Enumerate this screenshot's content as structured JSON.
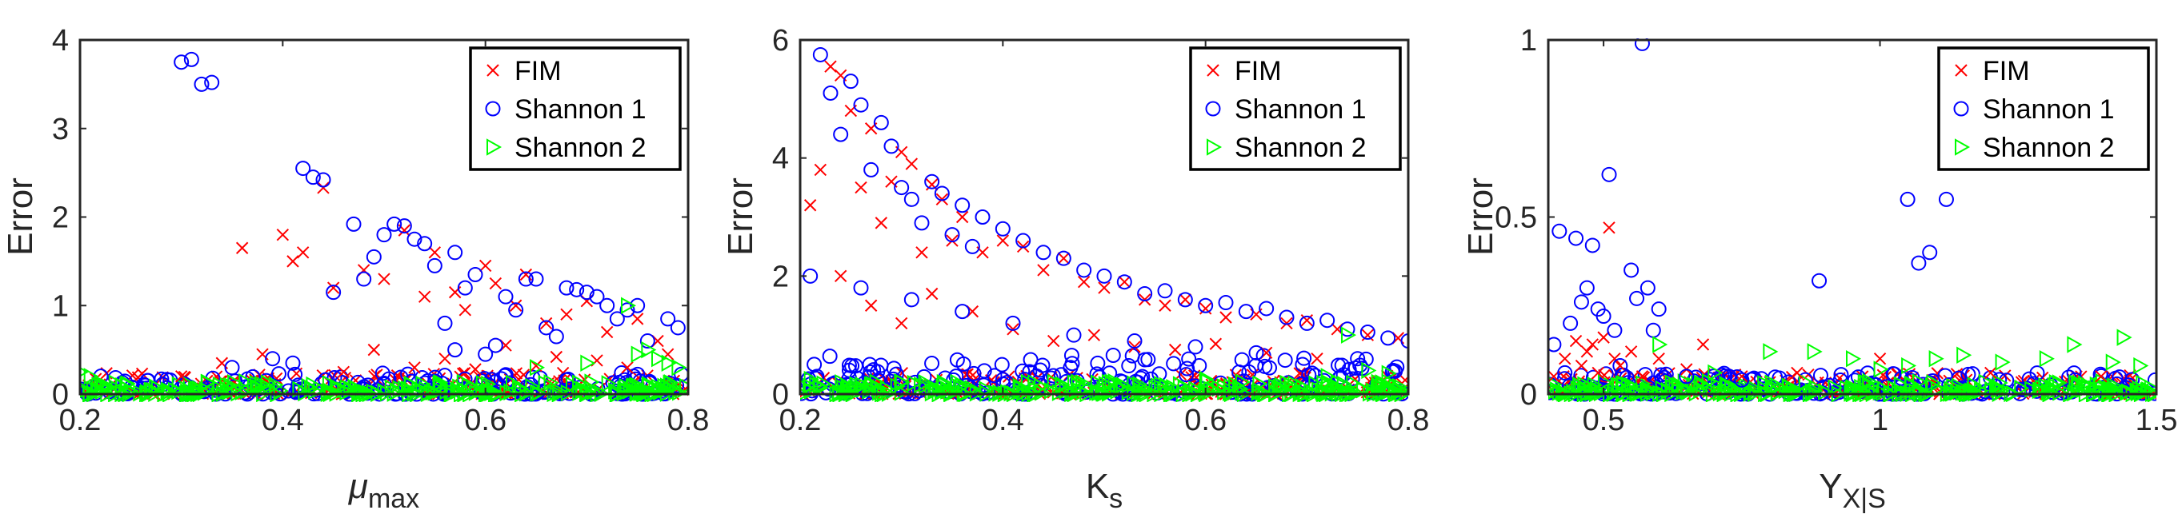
{
  "colors": {
    "fim": "#ff0000",
    "shannon1": "#0000ff",
    "shannon2": "#00ff00"
  },
  "legend": [
    "FIM",
    "Shannon 1",
    "Shannon 2"
  ],
  "chart_data": [
    {
      "type": "scatter",
      "ylabel": "Error",
      "xlabel": {
        "base": "μ",
        "sub": "max"
      },
      "xlim": [
        0.2,
        0.8
      ],
      "ylim": [
        0,
        4
      ],
      "xticks": [
        0.2,
        0.4,
        0.6,
        0.8
      ],
      "xtick_labels": [
        "0.2",
        "0.4",
        "0.6",
        "0.8"
      ],
      "yticks": [
        0,
        1,
        2,
        3,
        4
      ],
      "ytick_labels": [
        "0",
        "1",
        "2",
        "3",
        "4"
      ],
      "legend_position": "top-right",
      "series": [
        {
          "name": "FIM",
          "marker": "x",
          "x": [
            0.36,
            0.4,
            0.41,
            0.42,
            0.44,
            0.45,
            0.48,
            0.5,
            0.52,
            0.54,
            0.55,
            0.57,
            0.58,
            0.6,
            0.61,
            0.63,
            0.64,
            0.66,
            0.68,
            0.7,
            0.72,
            0.75,
            0.77,
            0.3,
            0.34,
            0.38,
            0.46,
            0.49,
            0.53,
            0.56,
            0.59,
            0.62,
            0.65,
            0.67,
            0.71,
            0.74,
            0.78
          ],
          "y": [
            1.65,
            1.8,
            1.5,
            1.6,
            2.33,
            1.2,
            1.4,
            1.3,
            1.85,
            1.1,
            1.6,
            1.15,
            0.95,
            1.45,
            1.25,
            1.0,
            1.35,
            0.8,
            0.9,
            1.05,
            0.7,
            0.85,
            0.6,
            0.2,
            0.35,
            0.45,
            0.25,
            0.5,
            0.3,
            0.4,
            0.28,
            0.55,
            0.32,
            0.42,
            0.38,
            0.3,
            0.45
          ]
        },
        {
          "name": "Shannon 1",
          "marker": "o",
          "x": [
            0.3,
            0.31,
            0.32,
            0.33,
            0.42,
            0.43,
            0.44,
            0.45,
            0.47,
            0.48,
            0.49,
            0.5,
            0.51,
            0.52,
            0.53,
            0.54,
            0.55,
            0.56,
            0.57,
            0.58,
            0.59,
            0.61,
            0.62,
            0.63,
            0.64,
            0.65,
            0.66,
            0.68,
            0.69,
            0.7,
            0.71,
            0.72,
            0.73,
            0.74,
            0.75,
            0.76,
            0.78,
            0.79,
            0.35,
            0.39,
            0.41,
            0.57,
            0.6,
            0.67
          ],
          "y": [
            3.75,
            3.78,
            3.5,
            3.52,
            2.55,
            2.45,
            2.42,
            1.15,
            1.92,
            1.3,
            1.55,
            1.8,
            1.92,
            1.9,
            1.75,
            1.7,
            1.45,
            0.8,
            1.6,
            1.2,
            1.35,
            0.55,
            1.1,
            0.95,
            1.3,
            1.3,
            0.75,
            1.2,
            1.18,
            1.15,
            1.1,
            1.0,
            0.85,
            0.95,
            1.0,
            0.6,
            0.85,
            0.75,
            0.3,
            0.4,
            0.35,
            0.5,
            0.45,
            0.65
          ]
        },
        {
          "name": "Shannon 2",
          "marker": "triangle-right",
          "x": [
            0.2,
            0.21,
            0.74,
            0.75,
            0.76,
            0.77,
            0.78,
            0.79,
            0.65,
            0.7
          ],
          "y": [
            0.25,
            0.2,
            1.0,
            0.45,
            0.5,
            0.4,
            0.35,
            0.3,
            0.3,
            0.35
          ]
        }
      ]
    },
    {
      "type": "scatter",
      "ylabel": "Error",
      "xlabel": {
        "base": "K",
        "sub": "s"
      },
      "xlim": [
        0.2,
        0.8
      ],
      "ylim": [
        0,
        6
      ],
      "xticks": [
        0.2,
        0.4,
        0.6,
        0.8
      ],
      "xtick_labels": [
        "0.2",
        "0.4",
        "0.6",
        "0.8"
      ],
      "yticks": [
        0,
        2,
        4,
        6
      ],
      "ytick_labels": [
        "0",
        "2",
        "4",
        "6"
      ],
      "legend_position": "top-right",
      "series": [
        {
          "name": "FIM",
          "marker": "x",
          "x": [
            0.21,
            0.22,
            0.23,
            0.24,
            0.25,
            0.26,
            0.27,
            0.28,
            0.29,
            0.3,
            0.31,
            0.32,
            0.33,
            0.34,
            0.35,
            0.36,
            0.38,
            0.4,
            0.42,
            0.44,
            0.46,
            0.48,
            0.5,
            0.52,
            0.54,
            0.56,
            0.58,
            0.6,
            0.62,
            0.65,
            0.68,
            0.7,
            0.73,
            0.76,
            0.79,
            0.24,
            0.27,
            0.3,
            0.33,
            0.37,
            0.41,
            0.45,
            0.49,
            0.53,
            0.57,
            0.61,
            0.66,
            0.71
          ],
          "y": [
            3.2,
            3.8,
            5.55,
            5.4,
            4.8,
            3.5,
            4.5,
            2.9,
            3.6,
            4.1,
            3.9,
            2.4,
            3.55,
            3.3,
            2.6,
            3.0,
            2.4,
            2.6,
            2.5,
            2.1,
            2.3,
            1.9,
            1.8,
            1.9,
            1.6,
            1.5,
            1.6,
            1.45,
            1.3,
            1.35,
            1.2,
            1.25,
            1.1,
            1.0,
            0.95,
            2.0,
            1.5,
            1.2,
            1.7,
            1.4,
            1.1,
            0.9,
            1.0,
            0.8,
            0.75,
            0.85,
            0.7,
            0.6
          ]
        },
        {
          "name": "Shannon 1",
          "marker": "o",
          "x": [
            0.22,
            0.23,
            0.24,
            0.25,
            0.26,
            0.27,
            0.28,
            0.29,
            0.3,
            0.31,
            0.32,
            0.33,
            0.34,
            0.35,
            0.36,
            0.37,
            0.38,
            0.4,
            0.42,
            0.44,
            0.46,
            0.48,
            0.5,
            0.52,
            0.54,
            0.56,
            0.58,
            0.6,
            0.62,
            0.64,
            0.66,
            0.68,
            0.7,
            0.72,
            0.74,
            0.76,
            0.78,
            0.8,
            0.21,
            0.26,
            0.31,
            0.36,
            0.41,
            0.47,
            0.53,
            0.59,
            0.65,
            0.75
          ],
          "y": [
            5.75,
            5.1,
            4.4,
            5.3,
            4.9,
            3.8,
            4.6,
            4.2,
            3.5,
            3.3,
            2.9,
            3.6,
            3.4,
            2.7,
            3.2,
            2.5,
            3.0,
            2.8,
            2.6,
            2.4,
            2.3,
            2.1,
            2.0,
            1.9,
            1.7,
            1.75,
            1.6,
            1.5,
            1.55,
            1.4,
            1.45,
            1.3,
            1.2,
            1.25,
            1.1,
            1.05,
            0.95,
            0.9,
            2.0,
            1.8,
            1.6,
            1.4,
            1.2,
            1.0,
            0.9,
            0.8,
            0.7,
            0.6
          ]
        },
        {
          "name": "Shannon 2",
          "marker": "triangle-right",
          "x": [
            0.21,
            0.3,
            0.45,
            0.6,
            0.72,
            0.74,
            0.76,
            0.78
          ],
          "y": [
            0.25,
            0.2,
            0.2,
            0.25,
            0.3,
            1.0,
            0.4,
            0.35
          ]
        }
      ]
    },
    {
      "type": "scatter",
      "ylabel": "Error",
      "xlabel": {
        "base": "Y",
        "sub": "X|S"
      },
      "xlim": [
        0.4,
        1.5
      ],
      "ylim": [
        0,
        1
      ],
      "xticks": [
        0.5,
        1.0,
        1.5
      ],
      "xtick_labels": [
        "0.5",
        "1",
        "1.5"
      ],
      "yticks": [
        0,
        0.5,
        1
      ],
      "ytick_labels": [
        "0",
        "0.5",
        "1"
      ],
      "legend_position": "top-right",
      "series": [
        {
          "name": "FIM",
          "marker": "x",
          "x": [
            0.41,
            0.43,
            0.45,
            0.46,
            0.47,
            0.48,
            0.49,
            0.5,
            0.51,
            0.52,
            0.53,
            0.55,
            0.57,
            0.6,
            0.65,
            0.68,
            0.75,
            0.85,
            1.0,
            1.2,
            1.4
          ],
          "y": [
            0.05,
            0.1,
            0.15,
            0.08,
            0.12,
            0.14,
            0.06,
            0.16,
            0.47,
            0.1,
            0.08,
            0.12,
            0.05,
            0.1,
            0.07,
            0.14,
            0.05,
            0.06,
            0.1,
            0.06,
            0.05
          ]
        },
        {
          "name": "Shannon 1",
          "marker": "o",
          "x": [
            0.41,
            0.42,
            0.44,
            0.45,
            0.46,
            0.47,
            0.48,
            0.49,
            0.5,
            0.51,
            0.52,
            0.55,
            0.56,
            0.57,
            0.58,
            0.59,
            0.6,
            0.89,
            1.05,
            1.07,
            1.09,
            1.12,
            0.43,
            0.53,
            0.65,
            0.75
          ],
          "y": [
            0.14,
            0.46,
            0.2,
            0.44,
            0.26,
            0.3,
            0.42,
            0.24,
            0.22,
            0.62,
            0.18,
            0.35,
            0.27,
            0.99,
            0.3,
            0.18,
            0.24,
            0.32,
            0.55,
            0.37,
            0.4,
            0.55,
            0.06,
            0.08,
            0.05,
            0.04
          ]
        },
        {
          "name": "Shannon 2",
          "marker": "triangle-right",
          "x": [
            0.6,
            0.8,
            0.88,
            0.95,
            1.05,
            1.15,
            1.22,
            1.3,
            1.35,
            1.42,
            1.44,
            1.47,
            0.7,
            1.0,
            1.1
          ],
          "y": [
            0.14,
            0.12,
            0.12,
            0.1,
            0.08,
            0.11,
            0.09,
            0.1,
            0.14,
            0.09,
            0.16,
            0.08,
            0.06,
            0.07,
            0.1
          ]
        }
      ]
    }
  ]
}
